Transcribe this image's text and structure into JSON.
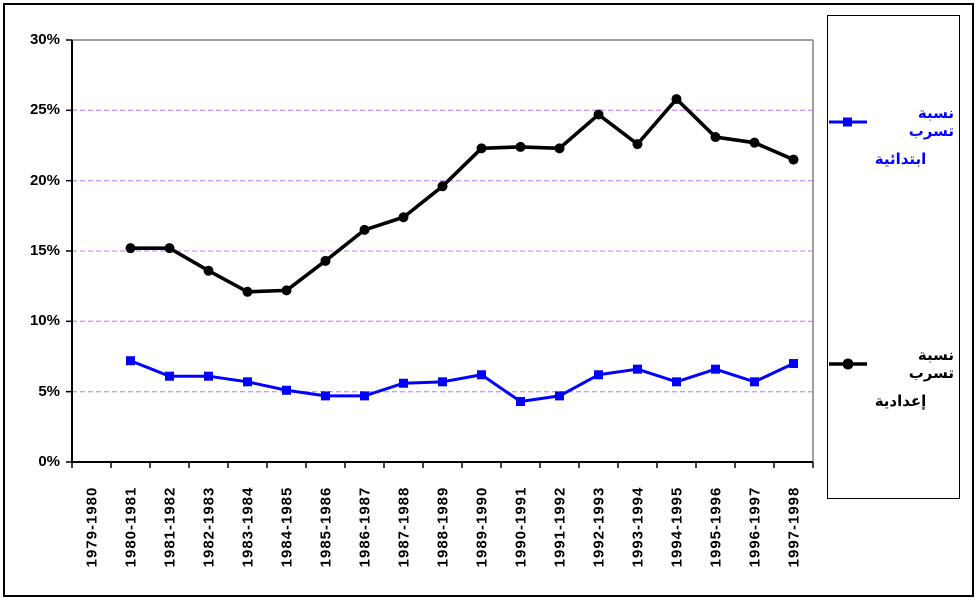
{
  "legend": {
    "entries": [
      {
        "line1": "نسبة تسرب",
        "line2": "ابتدائية"
      },
      {
        "line1": "نسبة تسرب",
        "line2": "إعدادية"
      }
    ]
  },
  "chart_data": {
    "type": "line",
    "title": "",
    "xlabel": "",
    "ylabel": "",
    "categories": [
      "1979-1980",
      "1980-1981",
      "1981-1982",
      "1982-1983",
      "1983-1984",
      "1984-1985",
      "1985-1986",
      "1986-1987",
      "1987-1988",
      "1988-1989",
      "1989-1990",
      "1990-1991",
      "1991-1992",
      "1992-1993",
      "1993-1994",
      "1994-1995",
      "1995-1996",
      "1996-1997",
      "1997-1998"
    ],
    "series": [
      {
        "name": "نسبة تسرب ابتدائية",
        "color": "#0000ff",
        "marker": "square",
        "values": [
          null,
          7.2,
          6.1,
          6.1,
          5.7,
          5.1,
          4.7,
          4.7,
          5.6,
          5.7,
          6.2,
          4.3,
          4.7,
          6.2,
          6.6,
          5.7,
          6.6,
          5.7,
          7.0
        ]
      },
      {
        "name": "نسبة تسرب إعدادية",
        "color": "#000000",
        "marker": "circle",
        "values": [
          null,
          15.2,
          15.2,
          13.6,
          12.1,
          12.2,
          14.3,
          16.5,
          17.4,
          19.6,
          22.3,
          22.4,
          22.3,
          24.7,
          22.6,
          25.8,
          23.1,
          22.7,
          21.5
        ]
      }
    ],
    "ylim": [
      0,
      30
    ],
    "yticks": [
      0,
      5,
      10,
      15,
      20,
      25,
      30
    ],
    "ytick_labels": [
      "0%",
      "5%",
      "10%",
      "15%",
      "20%",
      "25%",
      "30%"
    ],
    "grid": "horizontal-dashed",
    "legend_position": "right",
    "colors": {
      "gridline": "#cc99ff",
      "plot_frame_gray": "#808080",
      "axis": "#000000",
      "background": "#ffffff"
    }
  }
}
